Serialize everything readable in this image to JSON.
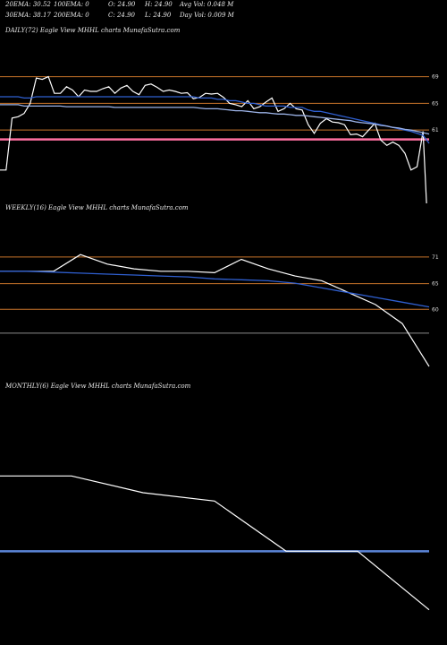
{
  "header": {
    "row1": [
      "20EMA: 30.52",
      "100EMA: 0",
      "O: 24.90",
      "H: 24.90",
      "Avg Vol: 0.048 M"
    ],
    "row2": [
      "30EMA: 38.17",
      "200EMA: 0",
      "C: 24.90",
      "L: 24.90",
      "Day Vol: 0.009 M"
    ]
  },
  "colors": {
    "background": "#000000",
    "price": "#ffffff",
    "ema_blue": "#2f5fd0",
    "support": "#c8742a",
    "pink": "#ff6fa0",
    "gray": "#8a8a8a"
  },
  "chart_data": [
    {
      "type": "line",
      "title": "DAILY(72) Eagle  View  MHHL  charts MunafaSutra.com",
      "ylim": [
        50,
        75
      ],
      "y_labels": [
        "69",
        "65",
        "61"
      ],
      "hlines": [
        {
          "value": 69,
          "color": "#c8742a"
        },
        {
          "value": 65,
          "color": "#c8742a"
        },
        {
          "value": 61,
          "color": "#c8742a"
        },
        {
          "value": 59.6,
          "color": "#ff6fa0"
        }
      ],
      "series": [
        {
          "values": [
            55,
            55,
            62.8,
            63,
            63.5,
            65,
            68.8,
            68.6,
            69,
            66.5,
            66.5,
            67.5,
            67,
            66,
            67,
            66.8,
            66.8,
            67.2,
            67.5,
            66.5,
            67.3,
            67.7,
            66.8,
            66.3,
            67.7,
            67.9,
            67.4,
            66.8,
            67,
            66.8,
            66.5,
            66.6,
            65.7,
            65.9,
            66.5,
            66.4,
            66.5,
            65.9,
            65,
            64.8,
            64.5,
            65.4,
            64.2,
            64.5,
            65.2,
            65.8,
            63.8,
            64.2,
            65,
            64.2,
            64,
            61.8,
            60.5,
            62,
            62.7,
            62.2,
            62.1,
            61.8,
            60.3,
            60.4,
            60,
            61,
            62,
            59.5,
            58.7,
            59.2,
            58.7,
            57.5,
            55,
            55.5,
            60.8,
            42
          ],
          "color": "#ffffff"
        },
        {
          "values": [
            66,
            66,
            66,
            66,
            65.8,
            65.8,
            66,
            66,
            66,
            66,
            66,
            66,
            66,
            66,
            66,
            66,
            66,
            66,
            66,
            66,
            66,
            66,
            66,
            66,
            66,
            66,
            66,
            66,
            66,
            66,
            66,
            66,
            66,
            65.8,
            65.8,
            65.8,
            65.6,
            65.6,
            65.4,
            65.4,
            65.2,
            65,
            65,
            64.8,
            64.6,
            64.6,
            64.6,
            64.6,
            64.4,
            64.4,
            64.4,
            64,
            63.8,
            63.8,
            63.6,
            63.4,
            63.2,
            63,
            62.8,
            62.6,
            62.4,
            62.2,
            62,
            61.8,
            61.6,
            61.4,
            61.2,
            61,
            60.8,
            60.5,
            60.2,
            59
          ],
          "color": "#2f5fd0"
        },
        {
          "values": [
            64.8,
            64.8,
            64.8,
            64.8,
            64.6,
            64.6,
            64.6,
            64.6,
            64.6,
            64.6,
            64.6,
            64.5,
            64.5,
            64.5,
            64.5,
            64.5,
            64.5,
            64.5,
            64.5,
            64.4,
            64.4,
            64.4,
            64.4,
            64.4,
            64.4,
            64.4,
            64.4,
            64.4,
            64.4,
            64.4,
            64.4,
            64.4,
            64.4,
            64.3,
            64.2,
            64.2,
            64.2,
            64.1,
            64,
            63.9,
            63.9,
            63.8,
            63.7,
            63.6,
            63.6,
            63.5,
            63.4,
            63.4,
            63.3,
            63.2,
            63.2,
            63.1,
            63,
            62.9,
            62.8,
            62.7,
            62.6,
            62.5,
            62.4,
            62.2,
            62.1,
            62,
            61.9,
            61.7,
            61.6,
            61.4,
            61.3,
            61.1,
            61,
            60.8,
            60.6,
            60.4
          ],
          "color": "#9bb2e6"
        }
      ]
    },
    {
      "type": "line",
      "title": "WEEKLY(16) Eagle  View  MHHL  charts MunafaSutra.com",
      "ylim": [
        45,
        80
      ],
      "y_labels": [
        "71",
        "65",
        "60"
      ],
      "hlines": [
        {
          "value": 71,
          "color": "#c8742a"
        },
        {
          "value": 65.4,
          "color": "#c8742a"
        },
        {
          "value": 60,
          "color": "#c8742a"
        },
        {
          "value": 55,
          "color": "#8a8a8a"
        }
      ],
      "series": [
        {
          "values": [
            68,
            68,
            68,
            71.5,
            69.5,
            68.5,
            68,
            68,
            67.7,
            70.5,
            68.5,
            67,
            66,
            63.5,
            61,
            57,
            48
          ],
          "color": "#ffffff"
        },
        {
          "values": [
            68,
            68,
            67.8,
            67.6,
            67.4,
            67.2,
            67,
            66.8,
            66.4,
            66.2,
            66,
            65.5,
            64.5,
            63.5,
            62.5,
            61.5,
            60.5
          ],
          "color": "#2f5fd0"
        }
      ]
    },
    {
      "type": "line",
      "title": "MONTHLY(6) Eagle  View  MHHL  charts MunafaSutra.com",
      "ylim": [
        20,
        50
      ],
      "y_labels": [],
      "hlines": [
        {
          "value": 31,
          "color": "#5b85d8"
        }
      ],
      "series": [
        {
          "values": [
            40,
            40,
            38,
            37,
            31,
            31,
            24
          ],
          "color": "#ffffff"
        }
      ]
    }
  ]
}
